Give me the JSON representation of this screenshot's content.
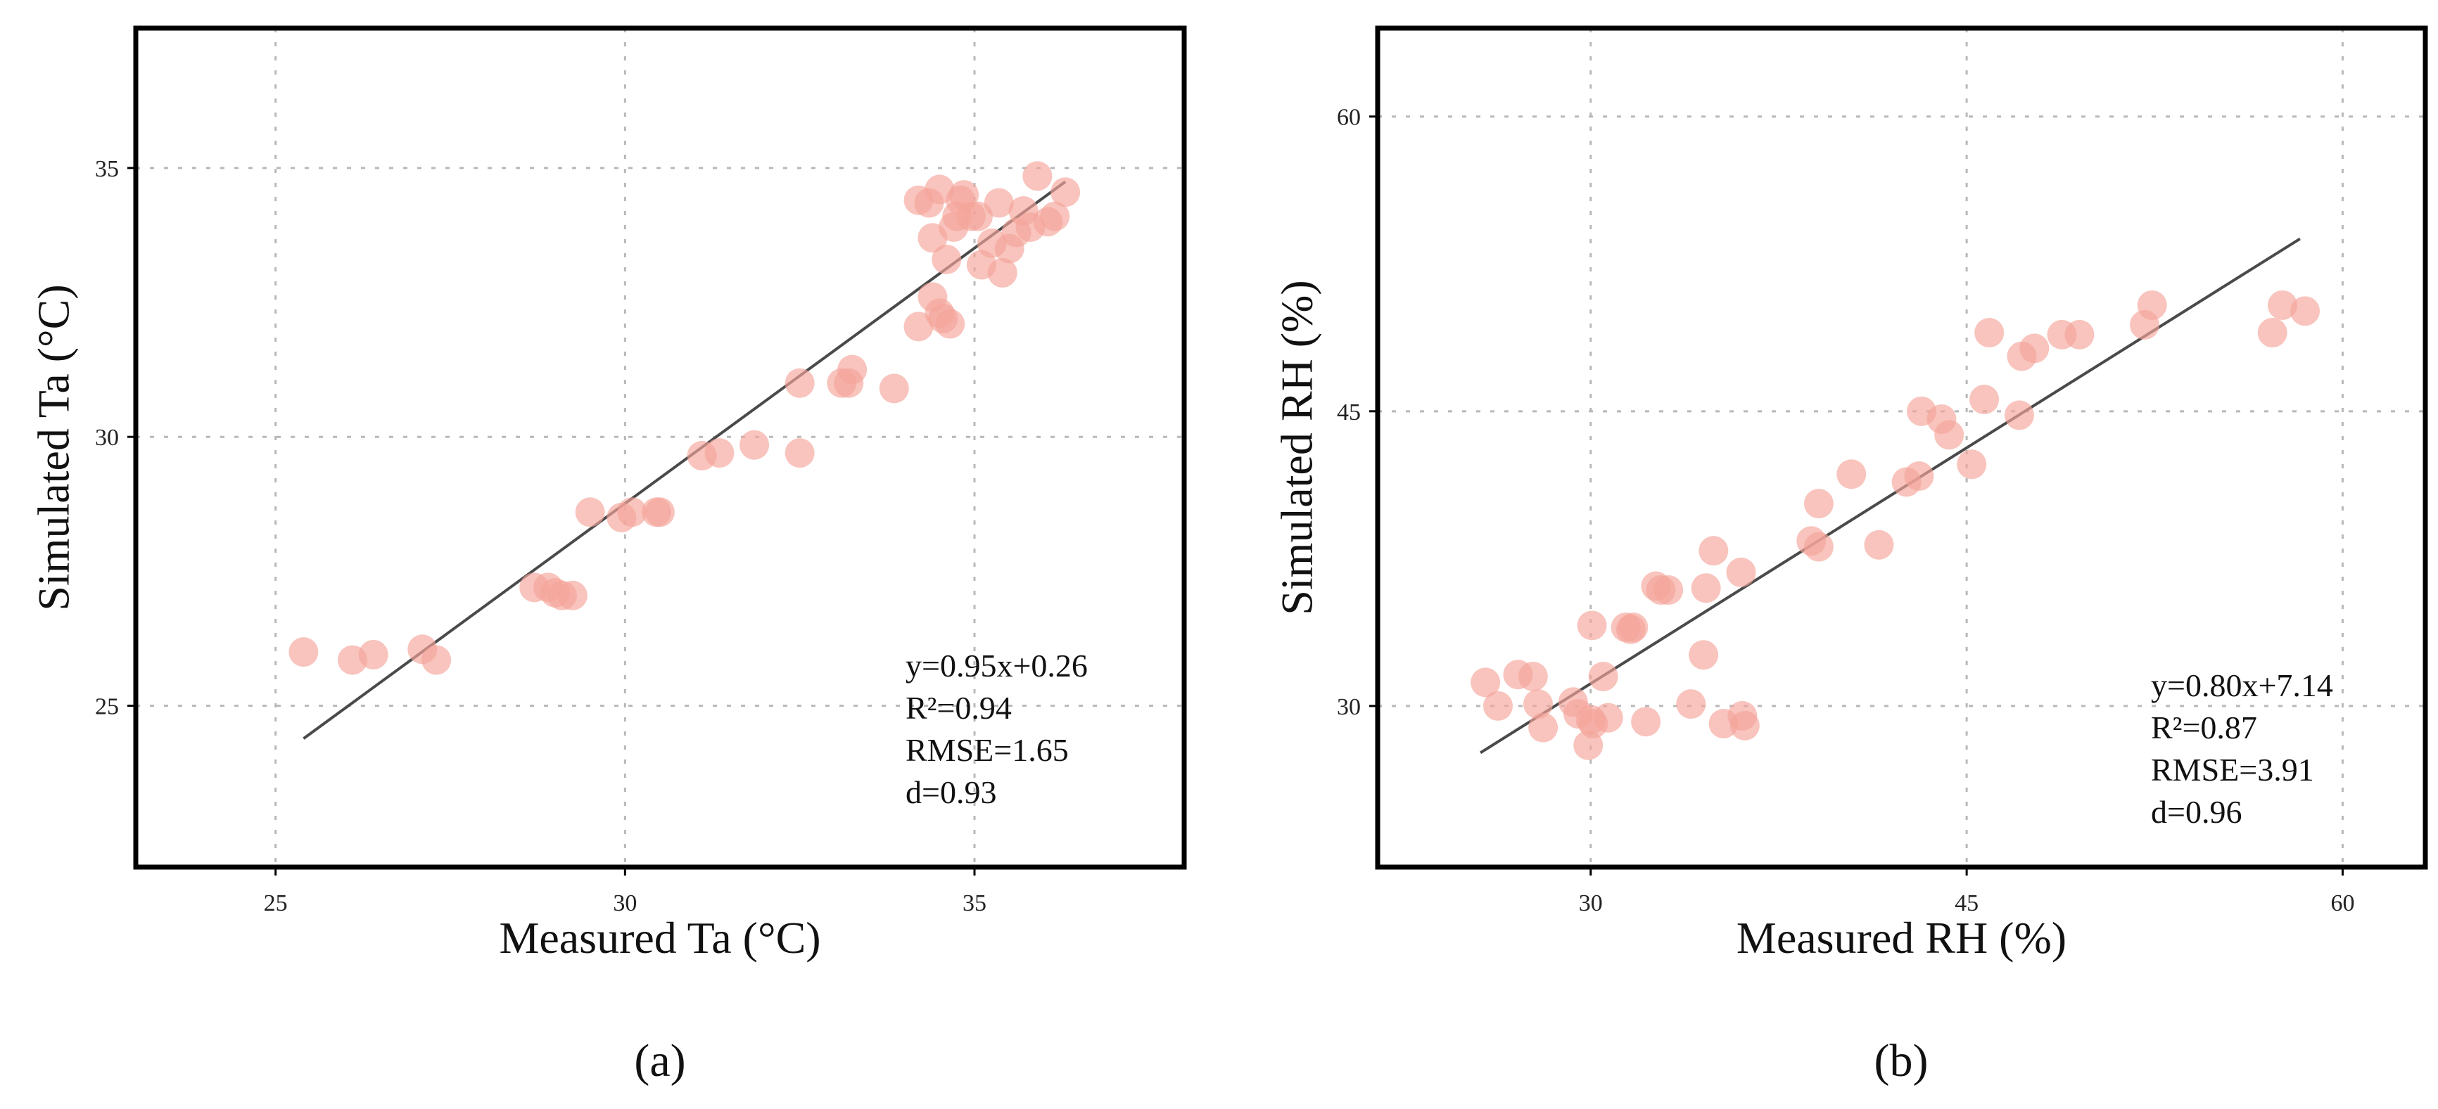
{
  "style": {
    "point_color": "#f4a59a",
    "point_opacity": 0.65,
    "fit_color": "#4a4a4a"
  },
  "chart_data": [
    {
      "type": "scatter",
      "caption": "(a)",
      "xlabel": "Measured Ta (°C)",
      "ylabel": "Simulated Ta (°C)",
      "xlim": [
        23,
        38
      ],
      "ylim": [
        22,
        37.6
      ],
      "xticks": [
        25,
        30,
        35
      ],
      "yticks": [
        25,
        30,
        35
      ],
      "grid": true,
      "fit": {
        "slope": 0.95,
        "intercept": 0.26,
        "x_range": [
          25.4,
          36.3
        ]
      },
      "stats": [
        "y=0.95x+0.26",
        "R²=0.94",
        "RMSE=1.65",
        "d=0.93"
      ],
      "points": [
        [
          25.4,
          26.0
        ],
        [
          26.1,
          25.85
        ],
        [
          26.4,
          25.95
        ],
        [
          27.1,
          26.05
        ],
        [
          27.3,
          25.85
        ],
        [
          28.7,
          27.2
        ],
        [
          28.9,
          27.2
        ],
        [
          29.0,
          27.1
        ],
        [
          29.1,
          27.05
        ],
        [
          29.25,
          27.05
        ],
        [
          29.5,
          28.6
        ],
        [
          29.95,
          28.5
        ],
        [
          30.1,
          28.6
        ],
        [
          30.5,
          28.6
        ],
        [
          30.45,
          28.6
        ],
        [
          31.1,
          29.65
        ],
        [
          31.35,
          29.7
        ],
        [
          31.85,
          29.85
        ],
        [
          32.5,
          29.7
        ],
        [
          32.5,
          31.0
        ],
        [
          33.1,
          31.0
        ],
        [
          33.2,
          31.0
        ],
        [
          33.25,
          31.25
        ],
        [
          33.85,
          30.9
        ],
        [
          34.2,
          32.05
        ],
        [
          34.4,
          32.6
        ],
        [
          34.5,
          32.3
        ],
        [
          34.55,
          32.2
        ],
        [
          34.65,
          32.1
        ],
        [
          34.2,
          34.4
        ],
        [
          34.35,
          34.35
        ],
        [
          34.5,
          34.6
        ],
        [
          34.4,
          33.7
        ],
        [
          34.6,
          33.3
        ],
        [
          34.7,
          33.9
        ],
        [
          34.75,
          34.1
        ],
        [
          34.8,
          34.4
        ],
        [
          34.85,
          34.5
        ],
        [
          34.95,
          34.1
        ],
        [
          35.05,
          34.1
        ],
        [
          35.1,
          33.2
        ],
        [
          35.25,
          33.6
        ],
        [
          35.35,
          34.35
        ],
        [
          35.4,
          33.05
        ],
        [
          35.5,
          33.5
        ],
        [
          35.6,
          33.8
        ],
        [
          35.7,
          34.2
        ],
        [
          35.8,
          33.9
        ],
        [
          35.9,
          34.85
        ],
        [
          36.05,
          34.0
        ],
        [
          36.15,
          34.1
        ],
        [
          36.3,
          34.55
        ]
      ]
    },
    {
      "type": "scatter",
      "caption": "(b)",
      "xlabel": "Measured RH (%)",
      "ylabel": "Simulated RH (%)",
      "xlim": [
        21.5,
        63.3
      ],
      "ylim": [
        21.8,
        64.5
      ],
      "xticks": [
        30,
        45,
        60
      ],
      "yticks": [
        30,
        45,
        60
      ],
      "grid": true,
      "fit": {
        "slope": 0.8,
        "intercept": 7.14,
        "x_range": [
          25.6,
          58.3
        ]
      },
      "stats": [
        "y=0.80x+7.14",
        "R²=0.87",
        "RMSE=3.91",
        "d=0.96"
      ],
      "points": [
        [
          25.8,
          31.2
        ],
        [
          26.3,
          30.0
        ],
        [
          27.1,
          31.6
        ],
        [
          27.7,
          31.5
        ],
        [
          27.9,
          30.1
        ],
        [
          28.1,
          28.9
        ],
        [
          29.3,
          30.2
        ],
        [
          29.5,
          29.6
        ],
        [
          29.9,
          28.0
        ],
        [
          30.0,
          29.3
        ],
        [
          30.1,
          29.1
        ],
        [
          30.05,
          34.1
        ],
        [
          30.5,
          31.5
        ],
        [
          30.7,
          29.4
        ],
        [
          31.4,
          34.0
        ],
        [
          31.6,
          33.9
        ],
        [
          31.7,
          34.0
        ],
        [
          32.2,
          29.2
        ],
        [
          32.6,
          36.1
        ],
        [
          32.8,
          35.9
        ],
        [
          33.1,
          35.9
        ],
        [
          34.0,
          30.1
        ],
        [
          34.5,
          32.6
        ],
        [
          34.6,
          36.0
        ],
        [
          34.9,
          37.9
        ],
        [
          35.3,
          29.1
        ],
        [
          36.0,
          36.8
        ],
        [
          36.05,
          29.5
        ],
        [
          36.15,
          29.0
        ],
        [
          38.8,
          38.4
        ],
        [
          39.1,
          40.3
        ],
        [
          39.1,
          38.1
        ],
        [
          40.4,
          41.8
        ],
        [
          41.5,
          38.2
        ],
        [
          42.6,
          41.4
        ],
        [
          43.1,
          41.7
        ],
        [
          43.2,
          45.0
        ],
        [
          44.0,
          44.6
        ],
        [
          44.3,
          43.8
        ],
        [
          45.2,
          42.3
        ],
        [
          45.7,
          45.6
        ],
        [
          45.9,
          49.0
        ],
        [
          47.1,
          44.8
        ],
        [
          47.2,
          47.8
        ],
        [
          47.7,
          48.2
        ],
        [
          48.8,
          48.9
        ],
        [
          49.5,
          48.9
        ],
        [
          52.1,
          49.4
        ],
        [
          52.4,
          50.4
        ],
        [
          57.2,
          49.0
        ],
        [
          57.6,
          50.4
        ],
        [
          58.5,
          50.1
        ]
      ]
    }
  ]
}
